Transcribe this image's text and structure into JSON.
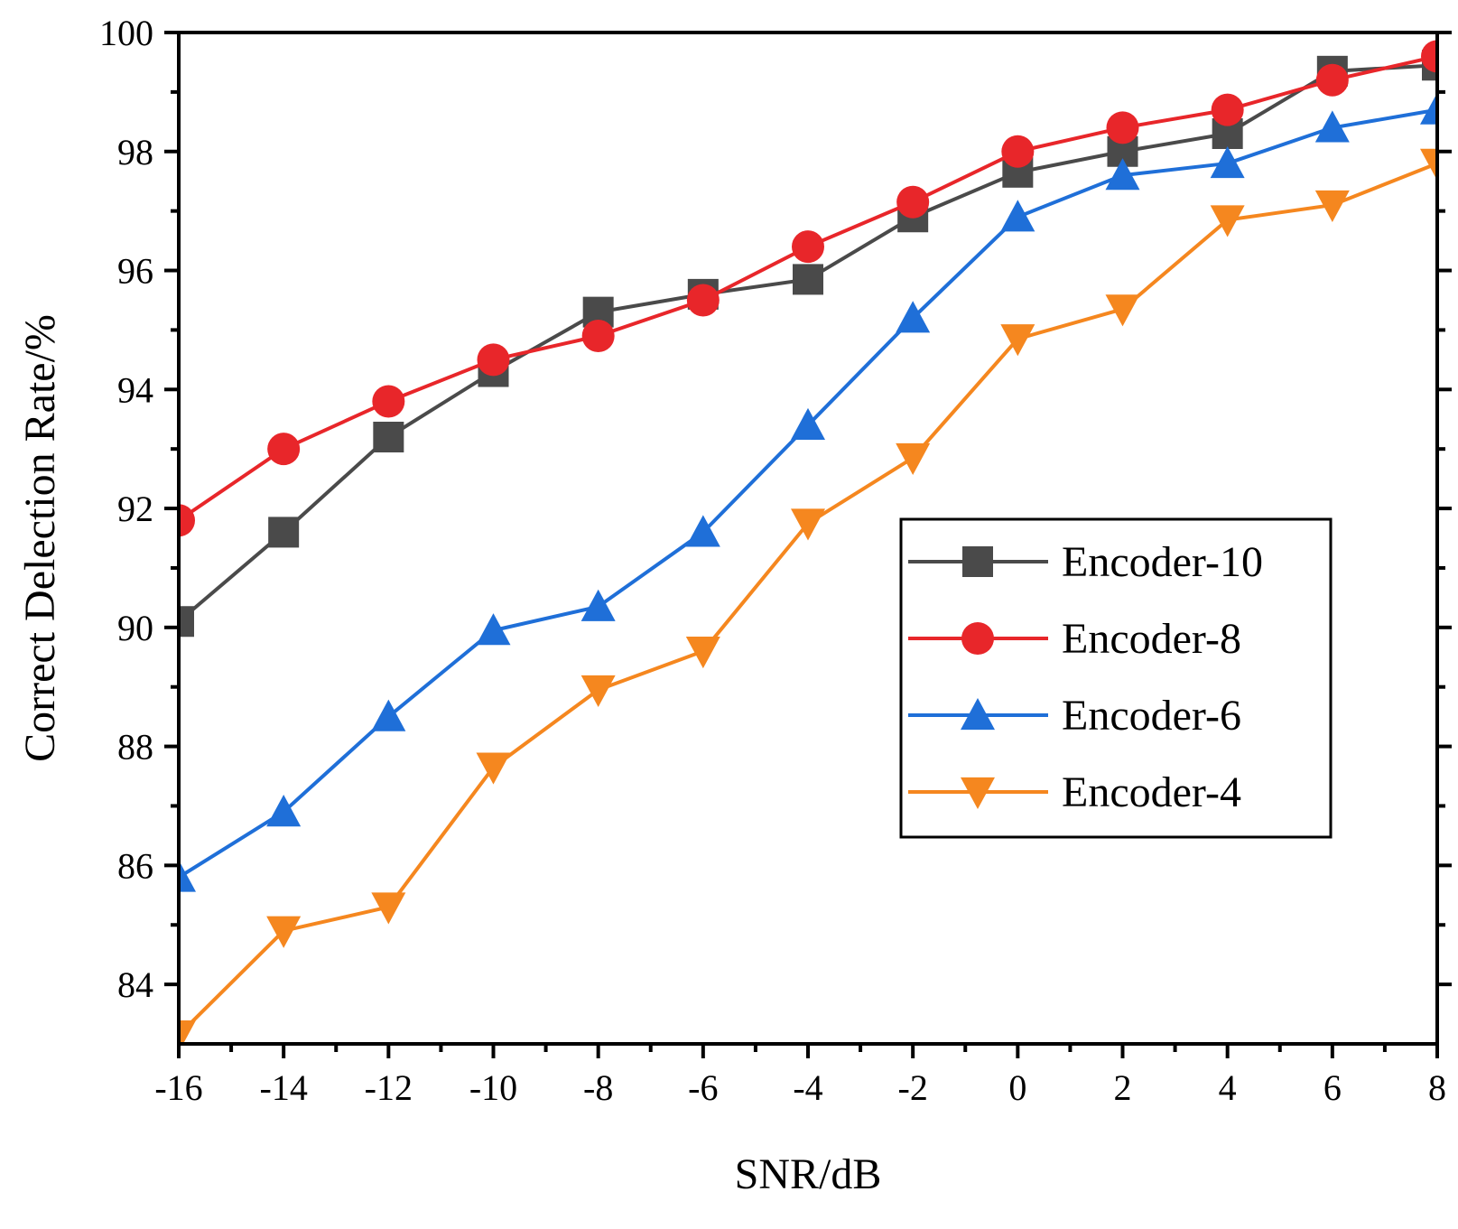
{
  "chart_data": {
    "type": "line",
    "title": "",
    "xlabel": "SNR/dB",
    "ylabel": "Correct Delection Rate/%",
    "xlim": [
      -16,
      8
    ],
    "ylim": [
      83,
      100
    ],
    "xticks": [
      -16,
      -14,
      -12,
      -10,
      -8,
      -6,
      -4,
      -2,
      0,
      2,
      4,
      6,
      8
    ],
    "xtick_labels": [
      "-16",
      "-14",
      "-12",
      "-10",
      "-8",
      "-6",
      "-4",
      "-2",
      "0",
      "2",
      "4",
      "6",
      "8"
    ],
    "yticks": [
      84,
      86,
      88,
      90,
      92,
      94,
      96,
      98,
      100
    ],
    "ytick_labels": [
      "84",
      "86",
      "88",
      "90",
      "92",
      "94",
      "96",
      "98",
      "100"
    ],
    "grid": false,
    "legend_position": "center-right",
    "x": [
      -16,
      -14,
      -12,
      -10,
      -8,
      -6,
      -4,
      -2,
      0,
      2,
      4,
      6,
      8
    ],
    "series": [
      {
        "name": "Encoder-10",
        "color": "#4a4a4a",
        "marker": "square",
        "values": [
          90.1,
          91.6,
          93.2,
          94.3,
          95.3,
          95.6,
          95.85,
          96.9,
          97.65,
          98.0,
          98.3,
          99.35,
          99.45
        ]
      },
      {
        "name": "Encoder-8",
        "color": "#e8262a",
        "marker": "circle",
        "values": [
          91.8,
          93.0,
          93.8,
          94.5,
          94.9,
          95.5,
          96.4,
          97.15,
          98.0,
          98.4,
          98.7,
          99.2,
          99.6
        ]
      },
      {
        "name": "Encoder-6",
        "color": "#1f6fd8",
        "marker": "triangle-up",
        "values": [
          85.8,
          86.9,
          88.5,
          89.95,
          90.35,
          91.6,
          93.4,
          95.2,
          96.9,
          97.6,
          97.8,
          98.4,
          98.7
        ]
      },
      {
        "name": "Encoder-4",
        "color": "#f5871f",
        "marker": "triangle-down",
        "values": [
          83.15,
          84.9,
          85.3,
          87.65,
          88.95,
          89.6,
          91.75,
          92.85,
          94.85,
          95.35,
          96.85,
          97.1,
          97.8
        ]
      }
    ]
  }
}
